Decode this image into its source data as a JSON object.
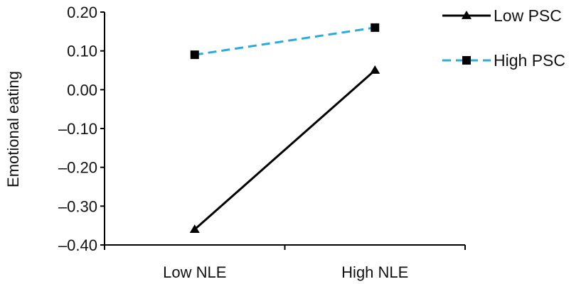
{
  "chart_data": {
    "type": "line",
    "categories": [
      "Low NLE",
      "High NLE"
    ],
    "ylabel": "Emotional eating",
    "xlabel": "",
    "ylim": [
      -0.4,
      0.2
    ],
    "yticks": [
      "0.20",
      "0.10",
      "0.00",
      "–0.10",
      "–0.20",
      "–0.30",
      "–0.40"
    ],
    "ytick_values": [
      0.2,
      0.1,
      0.0,
      -0.1,
      -0.2,
      -0.3,
      -0.4
    ],
    "grid": false,
    "legend_position": "top-right",
    "series": [
      {
        "name": "Low PSC",
        "values": [
          -0.36,
          0.05
        ],
        "color": "#000000",
        "line": "solid",
        "marker": "triangle"
      },
      {
        "name": "High PSC",
        "values": [
          0.09,
          0.16
        ],
        "color": "#29abe2",
        "line": "dashed",
        "marker": "square"
      }
    ]
  }
}
